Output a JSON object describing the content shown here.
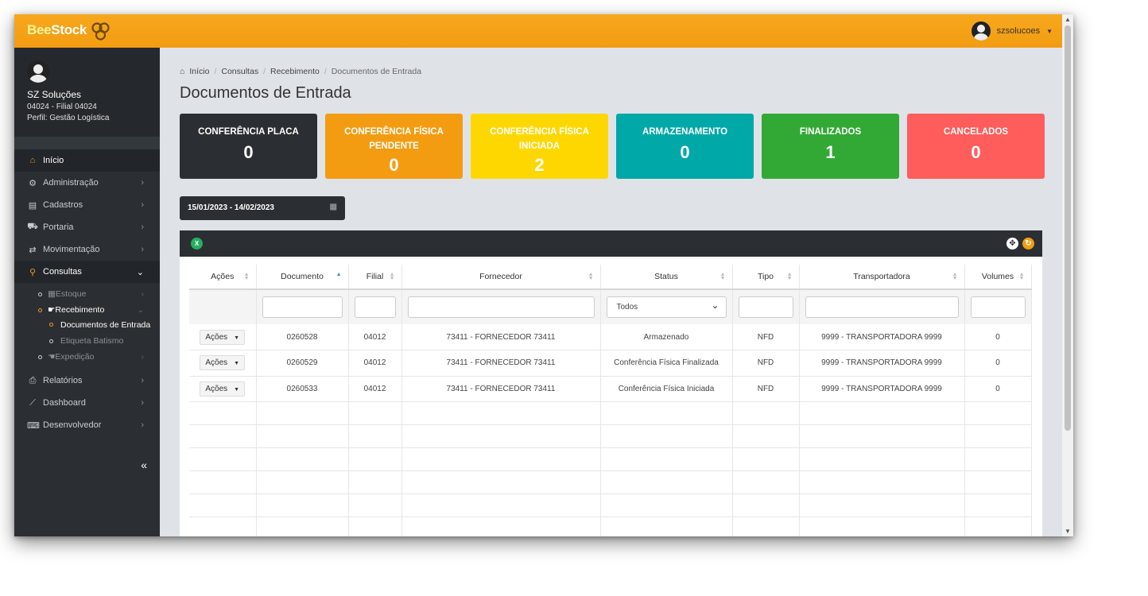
{
  "app": {
    "logo_bee": "Bee",
    "logo_stock": "Stock",
    "user_name": "szsolucoes"
  },
  "profile": {
    "name": "SZ Soluções",
    "branch": "04024 - Filial 04024",
    "role": "Perfil: Gestão Logística"
  },
  "menu": {
    "inicio": "Início",
    "administracao": "Administração",
    "cadastros": "Cadastros",
    "portaria": "Portaria",
    "movimentacao": "Movimentação",
    "consultas": "Consultas",
    "estoque": "Estoque",
    "recebimento": "Recebimento",
    "documentos_entrada": "Documentos de Entrada",
    "etiqueta_batismo": "Etiqueta Batismo",
    "expedicao": "Expedição",
    "relatorios": "Relatórios",
    "dashboard": "Dashboard",
    "desenvolvedor": "Desenvolvedor",
    "collapse": "«"
  },
  "breadcrumb": {
    "home": "Início",
    "consultas": "Consultas",
    "recebimento": "Recebimento",
    "current": "Documentos de Entrada"
  },
  "page_title": "Documentos de Entrada",
  "cards": [
    {
      "title": "CONFERÊNCIA PLACA",
      "value": "0",
      "color": "#2b2f33"
    },
    {
      "title": "CONFERÊNCIA FÍSICA PENDENTE",
      "value": "0",
      "color": "#f39c12"
    },
    {
      "title": "CONFERÊNCIA FÍSICA INICIADA",
      "value": "2",
      "color": "#ffd700"
    },
    {
      "title": "ARMAZENAMENTO",
      "value": "0",
      "color": "#00a8a8"
    },
    {
      "title": "FINALIZADOS",
      "value": "1",
      "color": "#33a935"
    },
    {
      "title": "CANCELADOS",
      "value": "0",
      "color": "#ff5c5c"
    }
  ],
  "date_range": "15/01/2023 - 14/02/2023",
  "table": {
    "headers": [
      "Ações",
      "Documento",
      "Filial",
      "Fornecedor",
      "Status",
      "Tipo",
      "Transportadora",
      "Volumes"
    ],
    "status_filter": "Todos",
    "action_label": "Ações",
    "rows": [
      {
        "documento": "0260528",
        "filial": "04012",
        "fornecedor": "73411 - FORNECEDOR 73411",
        "status": "Armazenado",
        "tipo": "NFD",
        "transportadora": "9999 - TRANSPORTADORA 9999",
        "volumes": "0"
      },
      {
        "documento": "0260529",
        "filial": "04012",
        "fornecedor": "73411 - FORNECEDOR 73411",
        "status": "Conferência Física Finalizada",
        "tipo": "NFD",
        "transportadora": "9999 - TRANSPORTADORA 9999",
        "volumes": "0"
      },
      {
        "documento": "0260533",
        "filial": "04012",
        "fornecedor": "73411 - FORNECEDOR 73411",
        "status": "Conferência Física Iniciada",
        "tipo": "NFD",
        "transportadora": "9999 - TRANSPORTADORA 9999",
        "volumes": "0"
      }
    ]
  }
}
